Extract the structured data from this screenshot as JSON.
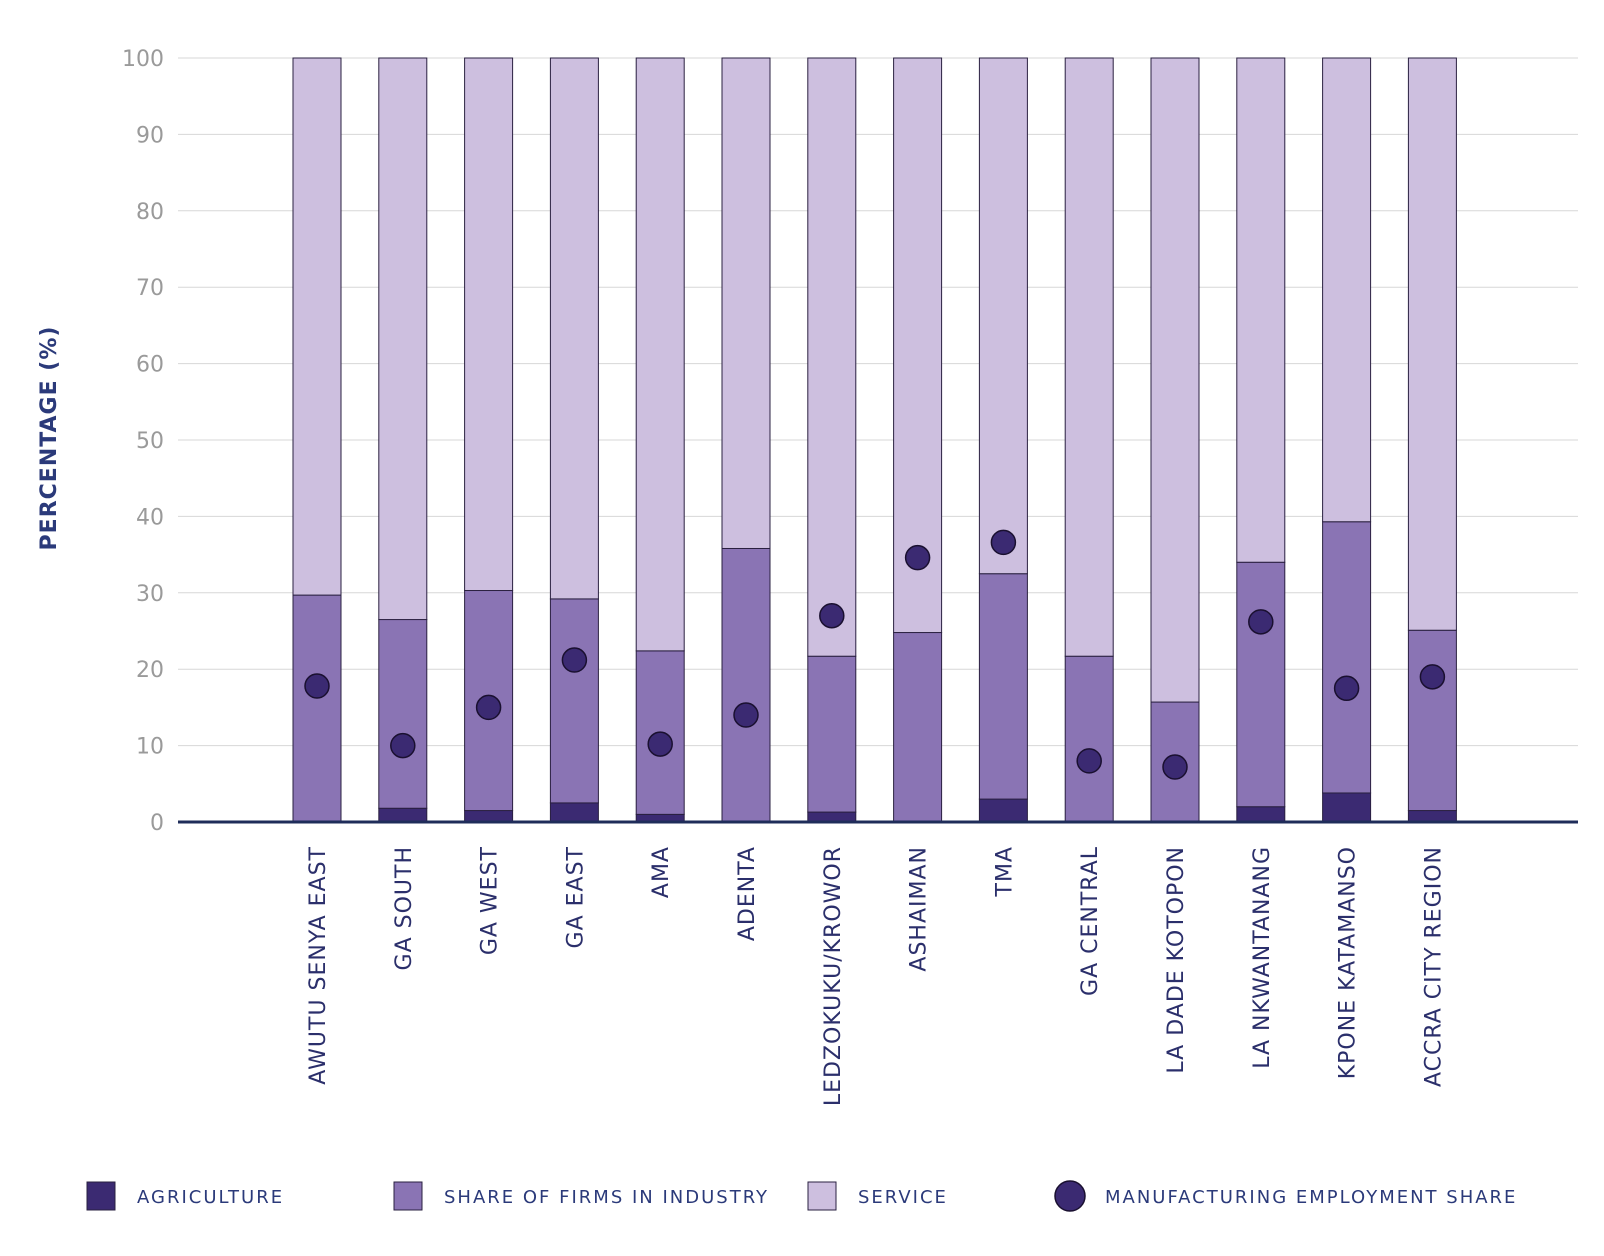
{
  "chart_data": {
    "type": "bar",
    "stacked": true,
    "ylabel": "PERCENTAGE (%)",
    "xlabel": "",
    "ylim": [
      0,
      100
    ],
    "yticks": [
      0,
      10,
      20,
      30,
      40,
      50,
      60,
      70,
      80,
      90,
      100
    ],
    "grid": true,
    "legend_position": "bottom",
    "categories": [
      "AWUTU SENYA EAST",
      "GA SOUTH",
      "GA WEST",
      "GA EAST",
      "AMA",
      "ADENTA",
      "LEDZOKUKU/KROWOR",
      "ASHAIMAN",
      "TMA",
      "GA CENTRAL",
      "LA DADE KOTOPON",
      "LA NKWANTANANG",
      "KPONE KATAMANSO",
      "ACCRA CITY REGION"
    ],
    "series": [
      {
        "name": "AGRICULTURE",
        "color": "#3b2a72",
        "values": [
          0.0,
          1.8,
          1.5,
          2.5,
          1.0,
          0.0,
          1.3,
          0.0,
          3.0,
          0.0,
          0.0,
          2.0,
          3.8,
          1.5
        ]
      },
      {
        "name": "SHARE OF FIRMS IN INDUSTRY",
        "color": "#8a74b4",
        "values": [
          29.7,
          24.7,
          28.8,
          26.7,
          21.4,
          35.8,
          20.4,
          24.8,
          29.5,
          21.7,
          15.7,
          32.0,
          35.5,
          23.6
        ]
      },
      {
        "name": "SERVICE",
        "color": "#cdbfdf",
        "values": [
          70.3,
          73.5,
          69.7,
          70.8,
          77.6,
          64.2,
          78.3,
          75.2,
          67.5,
          78.3,
          84.3,
          66.0,
          60.7,
          74.9
        ]
      }
    ],
    "markers": {
      "name": "MANUFACTURING EMPLOYMENT SHARE",
      "color": "#3b2a72",
      "values": [
        17.8,
        10.0,
        15.0,
        21.2,
        10.2,
        14.0,
        27.0,
        34.6,
        36.6,
        8.0,
        7.2,
        26.2,
        17.5,
        19.0
      ]
    }
  }
}
